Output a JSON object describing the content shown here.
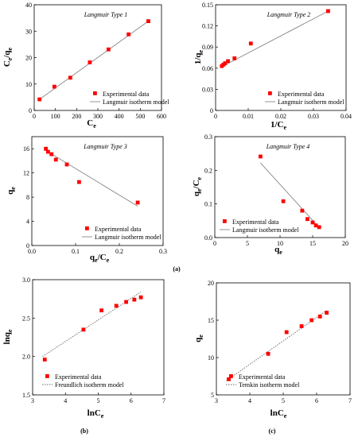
{
  "panel_labels": {
    "a": "(a)",
    "b": "(b)",
    "c": "(c)"
  },
  "chart_data": [
    {
      "type": "scatter",
      "panel": "a",
      "title": "Langmuir Type 1",
      "xlabel": "Ce",
      "ylabel": "Ce/qe",
      "xlim": [
        0,
        600
      ],
      "ylim": [
        0,
        40
      ],
      "xticks": [
        0,
        100,
        200,
        300,
        400,
        500,
        600
      ],
      "yticks": [
        0,
        10,
        20,
        30,
        40
      ],
      "xtick_labels": [
        "0",
        "100",
        "200",
        "300",
        "400",
        "500",
        "600"
      ],
      "ytick_labels": [
        "0",
        "10",
        "20",
        "30",
        "40"
      ],
      "legend_position": "bottom-right",
      "series": [
        {
          "name": "Experimental data",
          "kind": "points",
          "color": "#ff0000",
          "x": [
            25,
            95,
            170,
            262,
            350,
            445,
            538
          ],
          "y": [
            4.2,
            9.0,
            12.4,
            18.2,
            23.1,
            28.8,
            33.8
          ]
        },
        {
          "name": "Langmuir isotherm model",
          "kind": "line",
          "color": "#888888",
          "x": [
            20,
            545
          ],
          "y": [
            3.9,
            34.2
          ]
        }
      ]
    },
    {
      "type": "scatter",
      "panel": "a",
      "title": "Langmuir Type 2",
      "xlabel": "1/Ce",
      "ylabel": "1/qe",
      "xlim": [
        0,
        0.04
      ],
      "ylim": [
        0,
        0.15
      ],
      "xticks": [
        0,
        0.01,
        0.02,
        0.03,
        0.04
      ],
      "yticks": [
        0,
        0.03,
        0.06,
        0.09,
        0.12,
        0.15
      ],
      "xtick_labels": [
        "0",
        "0.01",
        "0.02",
        "0.03",
        "0.04"
      ],
      "ytick_labels": [
        "0",
        "0.03",
        "0.06",
        "0.09",
        "0.12",
        "0.15"
      ],
      "legend_position": "bottom-right",
      "series": [
        {
          "name": "Experimental data",
          "kind": "points",
          "color": "#ff0000",
          "x": [
            0.0019,
            0.0024,
            0.0029,
            0.0038,
            0.0058,
            0.0108,
            0.0345
          ],
          "y": [
            0.063,
            0.065,
            0.067,
            0.07,
            0.074,
            0.095,
            0.141
          ]
        },
        {
          "name": "Langmuir isotherm model",
          "kind": "line",
          "color": "#888888",
          "x": [
            0.0015,
            0.0345
          ],
          "y": [
            0.061,
            0.141
          ]
        }
      ]
    },
    {
      "type": "scatter",
      "panel": "a",
      "title": "Langmuir Type 3",
      "xlabel": "qe/Ce",
      "ylabel": "qe",
      "xlim": [
        0,
        0.3
      ],
      "ylim": [
        0,
        18
      ],
      "xticks": [
        0,
        0.1,
        0.2,
        0.3
      ],
      "yticks": [
        0,
        4,
        8,
        12,
        16
      ],
      "xtick_labels": [
        "0.0",
        "0.1",
        "0.2",
        "0.3"
      ],
      "ytick_labels": [
        "0",
        "4",
        "8",
        "12",
        "16"
      ],
      "legend_position": "bottom-right",
      "series": [
        {
          "name": "Experimental data",
          "kind": "points",
          "color": "#ff0000",
          "x": [
            0.032,
            0.037,
            0.045,
            0.055,
            0.08,
            0.108,
            0.242
          ],
          "y": [
            16.0,
            15.5,
            15.1,
            14.2,
            13.4,
            10.5,
            7.1
          ]
        },
        {
          "name": "Langmuir isotherm model",
          "kind": "line",
          "color": "#888888",
          "x": [
            0.03,
            0.242
          ],
          "y": [
            15.8,
            6.5
          ]
        }
      ]
    },
    {
      "type": "scatter",
      "panel": "a",
      "title": "Langmuir Type 4",
      "xlabel": "qe",
      "ylabel": "qe/Ce",
      "xlim": [
        0,
        20
      ],
      "ylim": [
        0,
        0.3
      ],
      "xticks": [
        0,
        5,
        10,
        15,
        20
      ],
      "yticks": [
        0,
        0.1,
        0.2,
        0.3
      ],
      "xtick_labels": [
        "0",
        "5",
        "10",
        "15",
        "20"
      ],
      "ytick_labels": [
        "0.0",
        "0.1",
        "0.2",
        "0.3"
      ],
      "legend_position": "bottom-left",
      "series": [
        {
          "name": "Experimental data",
          "kind": "points",
          "color": "#ff0000",
          "x": [
            7.0,
            10.5,
            13.4,
            14.2,
            15.0,
            15.5,
            16.0
          ],
          "y": [
            0.241,
            0.108,
            0.08,
            0.055,
            0.045,
            0.036,
            0.031
          ]
        },
        {
          "name": "Langmuir isotherm model",
          "kind": "line",
          "color": "#888888",
          "x": [
            7.0,
            16.0
          ],
          "y": [
            0.222,
            0.03
          ]
        }
      ]
    },
    {
      "type": "scatter",
      "panel": "b",
      "title": "",
      "xlabel": "lnCe",
      "ylabel": "lnqe",
      "xlim": [
        3,
        7
      ],
      "ylim": [
        1.5,
        3.0
      ],
      "xticks": [
        3,
        4,
        5,
        6,
        7
      ],
      "yticks": [
        1.5,
        2.0,
        2.5,
        3.0
      ],
      "xtick_labels": [
        "3",
        "4",
        "5",
        "6",
        "7"
      ],
      "ytick_labels": [
        "1.5",
        "2.0",
        "2.5",
        "3.0"
      ],
      "legend_position": "bottom-right",
      "series": [
        {
          "name": "Experimental data",
          "kind": "points",
          "color": "#ff0000",
          "x": [
            3.37,
            4.55,
            5.1,
            5.55,
            5.85,
            6.1,
            6.3
          ],
          "y": [
            1.96,
            2.35,
            2.6,
            2.66,
            2.71,
            2.74,
            2.77
          ]
        },
        {
          "name": "Freundlich isotherm model",
          "kind": "line",
          "color": "#666666",
          "x": [
            3.3,
            6.3
          ],
          "y": [
            2.0,
            2.84
          ]
        }
      ]
    },
    {
      "type": "scatter",
      "panel": "c",
      "title": "",
      "xlabel": "lnCe",
      "ylabel": "qe",
      "xlim": [
        3,
        7
      ],
      "ylim": [
        5,
        20
      ],
      "xticks": [
        3,
        4,
        5,
        6,
        7
      ],
      "yticks": [
        5,
        10,
        15,
        20
      ],
      "xtick_labels": [
        "3",
        "4",
        "5",
        "6",
        "7"
      ],
      "ytick_labels": [
        "5",
        "10",
        "15",
        "20"
      ],
      "legend_position": "bottom-right",
      "series": [
        {
          "name": "Experimental data",
          "kind": "points",
          "color": "#ff0000",
          "x": [
            3.37,
            4.55,
            5.1,
            5.55,
            5.85,
            6.1,
            6.3
          ],
          "y": [
            7.1,
            10.5,
            13.4,
            14.2,
            15.0,
            15.5,
            16.0
          ]
        },
        {
          "name": "Temkin isotherm model",
          "kind": "line",
          "color": "#666666",
          "x": [
            3.3,
            6.3
          ],
          "y": [
            6.9,
            16.3
          ]
        }
      ]
    }
  ]
}
